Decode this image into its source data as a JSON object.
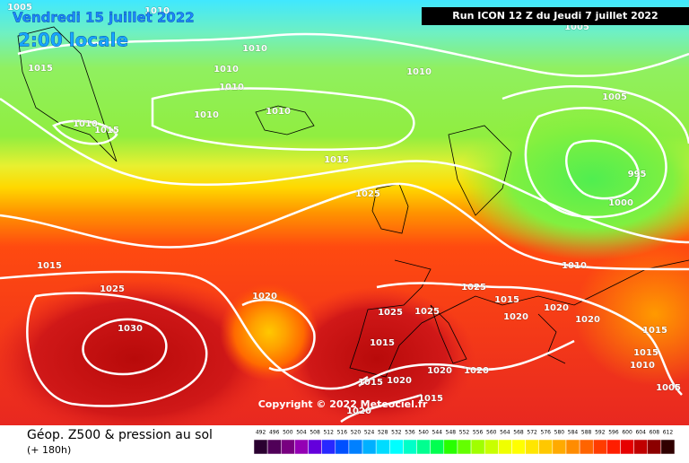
{
  "header": {
    "date": "Vendredi 15 juillet 2022",
    "time": "2:00 locale",
    "run": "Run ICON 12 Z du Jeudi 7 juillet 2022"
  },
  "isobar_labels": [
    1005,
    1010,
    1005,
    1015,
    1010,
    1010,
    1010,
    1010,
    1005,
    1010,
    1015,
    1010,
    1010,
    1015,
    995,
    1025,
    1000,
    1015,
    1010,
    1025,
    1020,
    1025,
    1015,
    1020,
    1020,
    1025,
    1025,
    1020,
    1030,
    1015,
    1015,
    1015,
    1010,
    1020,
    1020,
    1020,
    1015,
    1005,
    1015,
    1020
  ],
  "copyright": "Copyright © 2022 Meteociel.fr",
  "footer": {
    "title": "Géop. Z500 & pression au sol",
    "subtitle": "(+ 180h)"
  },
  "colorbar": {
    "labels": [
      492,
      496,
      500,
      504,
      508,
      512,
      516,
      520,
      524,
      528,
      532,
      536,
      540,
      544,
      548,
      552,
      556,
      560,
      564,
      568,
      572,
      576,
      580,
      584,
      588,
      592,
      596,
      600,
      604,
      608,
      612
    ]
  }
}
